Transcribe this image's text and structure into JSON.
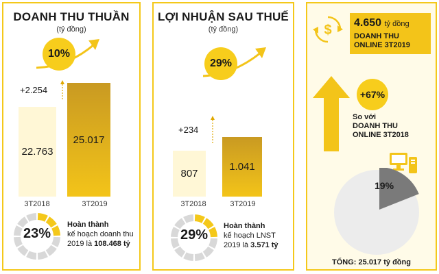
{
  "revenue": {
    "title": "DOANH THU THUẦN",
    "unit": "(tỷ đồng)",
    "growth": "10%",
    "increase": "+2.254",
    "note_bold": "Hoàn thành",
    "note_line2": "kế hoạch doanh thu",
    "note_line3_prefix": "2019 là ",
    "note_target": "108.468 tỷ",
    "completion": "23%",
    "completion_value": 0.23
  },
  "profit": {
    "title": "LỢI NHUẬN SAU THUẾ",
    "unit": "(tỷ đồng)",
    "growth": "29%",
    "increase": "+234",
    "note_bold": "Hoàn thành",
    "note_line2": "kế hoạch LNST",
    "note_line3_prefix": "2019 là ",
    "note_target": "3.571 tỷ",
    "completion": "29%",
    "completion_value": 0.29
  },
  "online": {
    "amount": "4.650",
    "amount_unit": "tỷ đồng",
    "label_line1": "DOANH THU",
    "label_line2": "ONLINE 3T2019",
    "growth": "+67%",
    "compare_line1": "So với",
    "compare_line2": "DOANH THU",
    "compare_line3": "ONLINE 3T2018",
    "share": "19%",
    "share_value": 0.19,
    "total": "TỔNG: 25.017 tỷ đồng",
    "icons": [
      "dollar-cycle-icon",
      "computer-icon"
    ]
  },
  "colors": {
    "accent": "#f4c81a",
    "dark_bar": "#c99a22",
    "light_bar": "#fff7d6",
    "gray": "#7a7a7a",
    "pie_bg": "#ececec"
  },
  "chart_data": [
    {
      "type": "bar",
      "title": "DOANH THU THUẦN",
      "categories": [
        "3T2018",
        "3T2019"
      ],
      "values": [
        22763,
        25017
      ],
      "labels": [
        "22.763",
        "25.017"
      ],
      "annotations": [
        "10%",
        "+2.254"
      ]
    },
    {
      "type": "bar",
      "title": "LỢI NHUẬN SAU THUẾ",
      "categories": [
        "3T2018",
        "3T2019"
      ],
      "values": [
        807,
        1041
      ],
      "labels": [
        "807",
        "1.041"
      ],
      "annotations": [
        "29%",
        "+234"
      ]
    },
    {
      "type": "pie",
      "values": [
        19,
        81
      ],
      "labels": [
        "19%",
        ""
      ],
      "annotations": [
        "TỔNG: 25.017 tỷ đồng"
      ]
    }
  ]
}
